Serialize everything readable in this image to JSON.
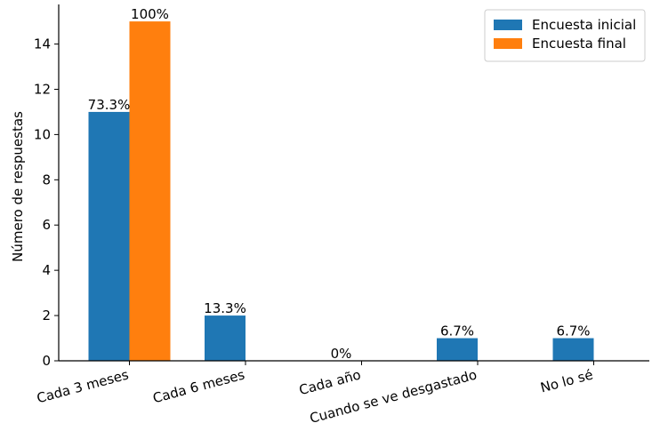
{
  "chart_data": {
    "type": "bar",
    "title": "",
    "xlabel": "",
    "ylabel": "Número de respuestas",
    "categories": [
      "Cada 3 meses",
      "Cada 6 meses",
      "Cada año",
      "Cuando se ve desgastado",
      "No lo sé"
    ],
    "series": [
      {
        "name": "Encuesta inicial",
        "color": "#1f77b4",
        "values": [
          11,
          2,
          0,
          1,
          1
        ],
        "labels": [
          "73.3%",
          "13.3%",
          "0%",
          "6.7%",
          "6.7%"
        ]
      },
      {
        "name": "Encuesta final",
        "color": "#ff7f0e",
        "values": [
          15,
          0,
          0,
          0,
          0
        ],
        "labels": [
          "100%",
          "",
          "",
          "",
          ""
        ]
      }
    ],
    "ylim": [
      0,
      15.75
    ],
    "yticks": [
      "0",
      "2",
      "4",
      "6",
      "8",
      "10",
      "12",
      "14"
    ],
    "xtick_rotation_deg": -15,
    "grid": false,
    "legend": {
      "placement": "top-right",
      "entries": [
        "Encuesta inicial",
        "Encuesta final"
      ]
    }
  }
}
